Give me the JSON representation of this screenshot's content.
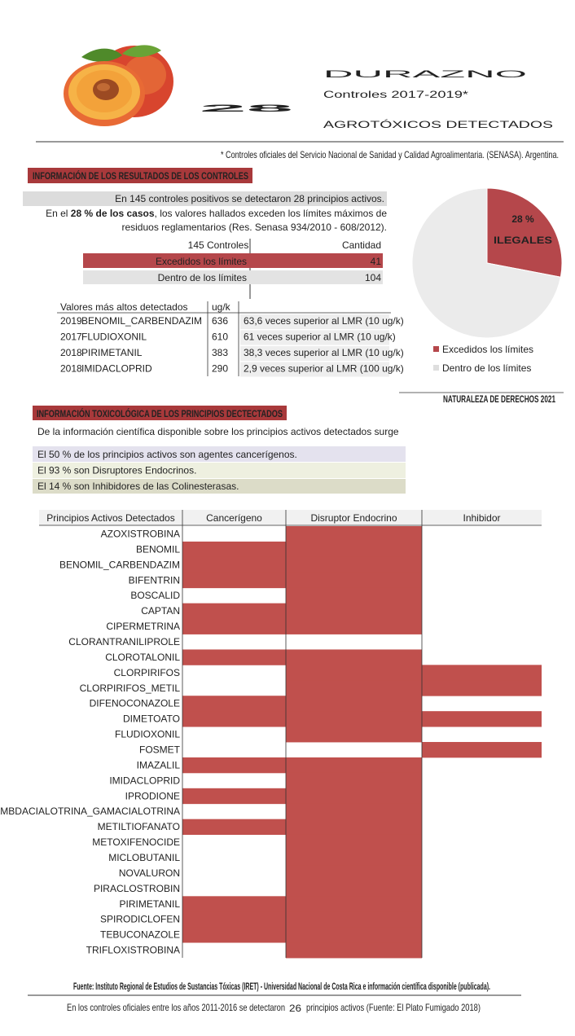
{
  "header": {
    "number": "28",
    "title": "DURAZNO",
    "subtitle": "Controles 2017-2019*",
    "tagline": "AGROTÓXICOS DETECTADOS",
    "footnote": "* Controles oficiales del Servicio Nacional de Sanidad y Calidad Agroalimentaria. (SENASA). Argentina."
  },
  "results": {
    "heading": "INFORMACIÓN DE LOS RESULTADOS DE LOS CONTROLES",
    "intro": "En 145 controles positivos se detectaron 28 principios activos.",
    "paragraph": [
      "En el ",
      "28 % de los casos",
      ", los valores hallados exceden los límites máximos de",
      "residuos reglamentarios (Res. Senasa 934/2010 - 608/2012)."
    ],
    "table": {
      "header": [
        "145 Controles",
        "Cantidad"
      ],
      "rows": [
        [
          "Excedidos los límites",
          41
        ],
        [
          "Dentro de los límites",
          104
        ]
      ]
    },
    "top_values": {
      "header": [
        "Valores más altos detectados",
        "ug/k"
      ],
      "rows": [
        [
          2019,
          "BENOMIL_CARBENDAZIM",
          636,
          "63,6 veces superior al LMR (10 ug/k)"
        ],
        [
          2017,
          "FLUDIOXONIL",
          610,
          "61 veces superior al LMR (10 ug/k)"
        ],
        [
          2018,
          "PIRIMETANIL",
          383,
          "38,3  veces superior al LMR (10 ug/k)"
        ],
        [
          2018,
          "IMIDACLOPRID",
          290,
          "2,9  veces superior al LMR (100 ug/k)"
        ]
      ]
    }
  },
  "chart_data": {
    "type": "pie",
    "categories": [
      "Excedidos los límites",
      "Dentro de los límites"
    ],
    "values": [
      28,
      72
    ],
    "value_labels": [
      "28 %",
      null
    ],
    "colors": [
      "#b5474b",
      "#ebebeb"
    ],
    "annotation": "ILEGALES"
  },
  "credit": "NATURALEZA DE DERECHOS 2021",
  "toxicology": {
    "heading": "INFORMACIÓN TOXICOLÓGICA DE LOS PRINCIPIOS DECTECTADOS",
    "intro": "De la información científica disponible sobre los principios activos detectados surge",
    "facts": [
      "El 50 % de los principios activos son agentes cancerígenos.",
      "El 93 % son Disruptores Endocrinos.",
      "El 14 % son Inhibidores de las Colinesterasas."
    ]
  },
  "matrix": {
    "columns": [
      "Principios Activos Detectados",
      "Cancerígeno",
      "Disruptor Endocrino",
      "Inhibidor"
    ],
    "color": "#c0504d",
    "rows": [
      [
        "AZOXISTROBINA",
        false,
        true,
        false
      ],
      [
        "BENOMIL",
        true,
        true,
        false
      ],
      [
        "BENOMIL_CARBENDAZIM",
        true,
        true,
        false
      ],
      [
        "BIFENTRIN",
        true,
        true,
        false
      ],
      [
        "BOSCALID",
        false,
        true,
        false
      ],
      [
        "CAPTAN",
        true,
        true,
        false
      ],
      [
        "CIPERMETRINA",
        true,
        true,
        false
      ],
      [
        "CLORANTRANILIPROLE",
        false,
        false,
        false
      ],
      [
        "CLOROTALONIL",
        true,
        true,
        false
      ],
      [
        "CLORPIRIFOS",
        false,
        true,
        true
      ],
      [
        "CLORPIRIFOS_METIL",
        false,
        true,
        true
      ],
      [
        "DIFENOCONAZOLE",
        true,
        true,
        false
      ],
      [
        "DIMETOATO",
        true,
        true,
        true
      ],
      [
        "FLUDIOXONIL",
        false,
        true,
        false
      ],
      [
        "FOSMET",
        false,
        false,
        true
      ],
      [
        "IMAZALIL",
        true,
        true,
        false
      ],
      [
        "IMIDACLOPRID",
        false,
        true,
        false
      ],
      [
        "IPRODIONE",
        true,
        true,
        false
      ],
      [
        "LAMBDACIALOTRINA_GAMACIALOTRINA",
        false,
        true,
        false
      ],
      [
        "METILTIOFANATO",
        true,
        true,
        false
      ],
      [
        "METOXIFENOCIDE",
        false,
        true,
        false
      ],
      [
        "MICLOBUTANIL",
        false,
        true,
        false
      ],
      [
        "NOVALURON",
        false,
        true,
        false
      ],
      [
        "PIRACLOSTROBIN",
        false,
        true,
        false
      ],
      [
        "PIRIMETANIL",
        true,
        true,
        false
      ],
      [
        "SPIRODICLOFEN",
        true,
        true,
        false
      ],
      [
        "TEBUCONAZOLE",
        true,
        true,
        false
      ],
      [
        "TRIFLOXISTROBINA",
        false,
        true,
        false
      ]
    ]
  },
  "footer": {
    "source": "Fuente:  Instituto Regional de Estudios de Sustancias Tóxicas (IRET) - Universidad Nacional de Costa Rica e información científica disponible (publicada).",
    "note": [
      "En los controles oficiales entre los años 2011-2016 se detectaron",
      "26",
      "principios activos (Fuente: El Plato Fumigado 2018)"
    ]
  }
}
